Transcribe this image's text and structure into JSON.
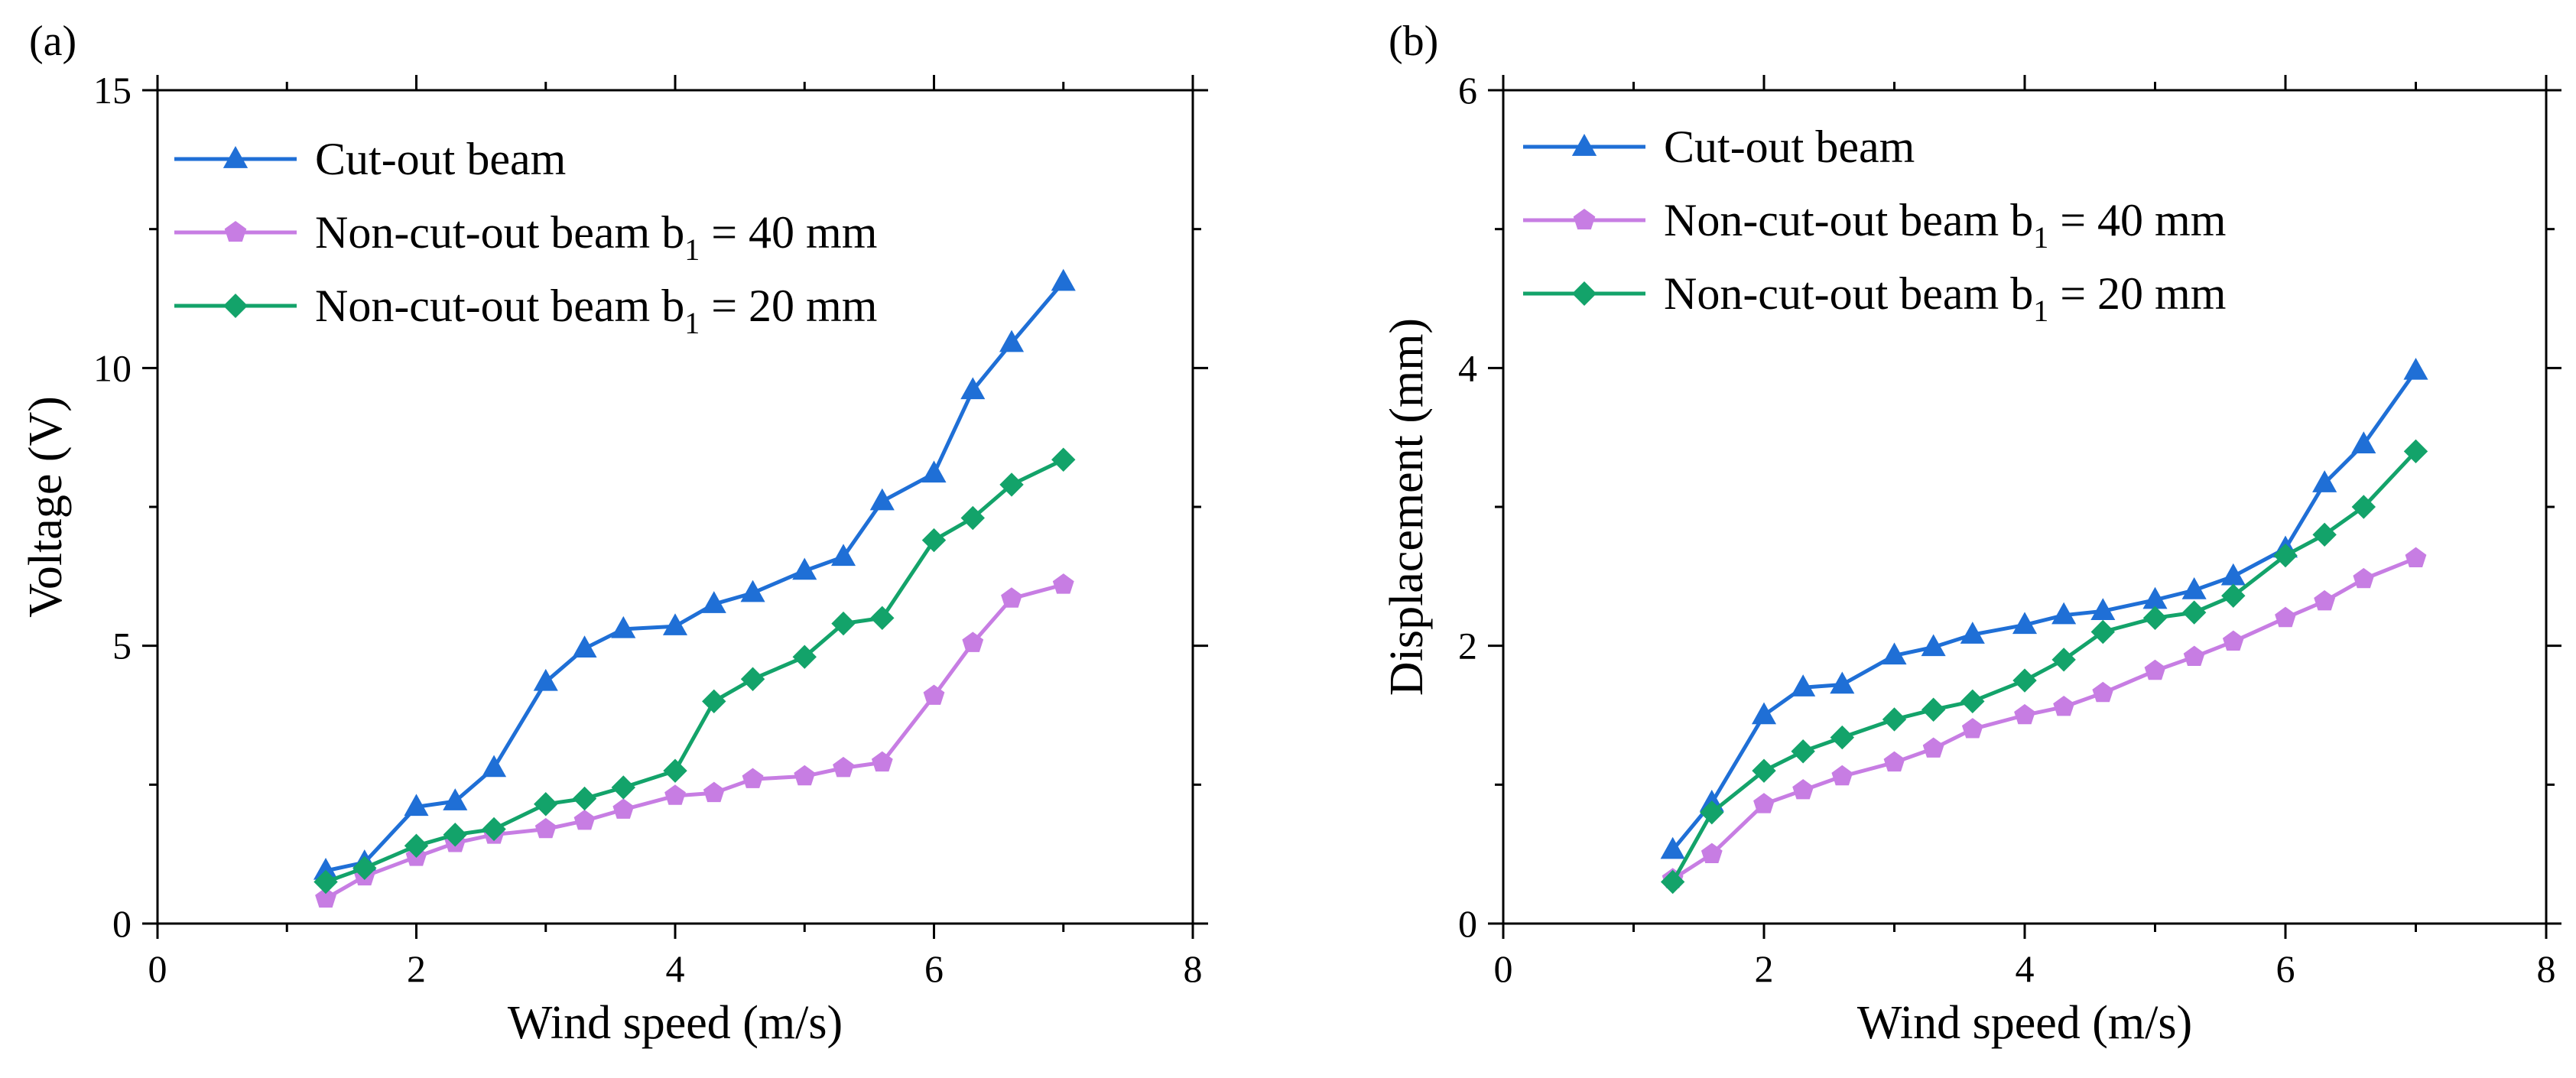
{
  "chart_data": [
    {
      "type": "line",
      "panel_label": "(a)",
      "xlabel": "Wind speed (m/s)",
      "ylabel": "Voltage (V)",
      "xlim": [
        0,
        8
      ],
      "ylim": [
        0,
        15
      ],
      "xticks": [
        0,
        2,
        4,
        6,
        8
      ],
      "yticks": [
        0,
        5,
        10,
        15
      ],
      "xtick_labels": [
        "0",
        "2",
        "4",
        "6",
        "8"
      ],
      "ytick_labels": [
        "0",
        "5",
        "10",
        "15"
      ],
      "legend_position": "top-left",
      "x": [
        1.3,
        1.6,
        2.0,
        2.3,
        2.6,
        3.0,
        3.3,
        3.6,
        4.0,
        4.3,
        4.6,
        5.0,
        5.3,
        5.6,
        6.0,
        6.3,
        6.6,
        7.0
      ],
      "series": [
        {
          "name": "Cut-out beam",
          "name_main": "Cut-out beam",
          "name_sub": "",
          "name_tail": "",
          "color": "#1f6fd6",
          "marker": "triangle",
          "values": [
            0.95,
            1.1,
            2.1,
            2.2,
            2.8,
            4.35,
            4.95,
            5.3,
            5.35,
            5.75,
            5.95,
            6.35,
            6.6,
            7.6,
            8.1,
            9.6,
            10.45,
            11.55
          ]
        },
        {
          "name": "Non-cut-out beam b1 = 40 mm",
          "name_main": "Non-cut-out beam b",
          "name_sub": "1",
          "name_tail": " = 40 mm",
          "color": "#c77de3",
          "marker": "pentagon",
          "values": [
            0.45,
            0.85,
            1.2,
            1.45,
            1.6,
            1.7,
            1.85,
            2.05,
            2.3,
            2.35,
            2.6,
            2.65,
            2.8,
            2.9,
            4.1,
            5.05,
            5.85,
            6.1
          ]
        },
        {
          "name": "Non-cut-out beam b1 = 20 mm",
          "name_main": "Non-cut-out beam b",
          "name_sub": "1",
          "name_tail": " = 20 mm",
          "color": "#13a36a",
          "marker": "diamond",
          "values": [
            0.75,
            1.0,
            1.4,
            1.6,
            1.7,
            2.15,
            2.25,
            2.45,
            2.75,
            4.0,
            4.4,
            4.8,
            5.4,
            5.5,
            6.9,
            7.3,
            7.9,
            8.35
          ]
        }
      ]
    },
    {
      "type": "line",
      "panel_label": "(b)",
      "xlabel": "Wind speed (m/s)",
      "ylabel": "Displacement (mm)",
      "xlim": [
        0,
        8
      ],
      "ylim": [
        0,
        6
      ],
      "xticks": [
        0,
        2,
        4,
        6,
        8
      ],
      "yticks": [
        0,
        2,
        4,
        6
      ],
      "xtick_labels": [
        "0",
        "2",
        "4",
        "6",
        "8"
      ],
      "ytick_labels": [
        "0",
        "2",
        "4",
        "6"
      ],
      "legend_position": "top-left",
      "x": [
        1.3,
        1.6,
        2.0,
        2.3,
        2.6,
        3.0,
        3.3,
        3.6,
        4.0,
        4.3,
        4.6,
        5.0,
        5.3,
        5.6,
        6.0,
        6.3,
        6.6,
        7.0
      ],
      "series": [
        {
          "name": "Cut-out beam",
          "name_main": "Cut-out beam",
          "name_sub": "",
          "name_tail": "",
          "color": "#1f6fd6",
          "marker": "triangle",
          "values": [
            0.53,
            0.87,
            1.5,
            1.7,
            1.72,
            1.93,
            1.99,
            2.08,
            2.15,
            2.22,
            2.25,
            2.33,
            2.4,
            2.5,
            2.7,
            3.17,
            3.45,
            3.98
          ]
        },
        {
          "name": "Non-cut-out beam b1 = 40 mm",
          "name_main": "Non-cut-out beam b",
          "name_sub": "1",
          "name_tail": " = 40 mm",
          "color": "#c77de3",
          "marker": "pentagon",
          "values": [
            0.32,
            0.5,
            0.86,
            0.96,
            1.06,
            1.16,
            1.26,
            1.4,
            1.5,
            1.56,
            1.66,
            1.82,
            1.92,
            2.03,
            2.2,
            2.32,
            2.48,
            2.63
          ]
        },
        {
          "name": "Non-cut-out beam b1 = 20 mm",
          "name_main": "Non-cut-out beam b",
          "name_sub": "1",
          "name_tail": " = 20 mm",
          "color": "#13a36a",
          "marker": "diamond",
          "values": [
            0.3,
            0.8,
            1.1,
            1.24,
            1.34,
            1.47,
            1.54,
            1.6,
            1.75,
            1.9,
            2.1,
            2.2,
            2.24,
            2.36,
            2.65,
            2.8,
            3.0,
            3.4
          ]
        }
      ]
    }
  ]
}
